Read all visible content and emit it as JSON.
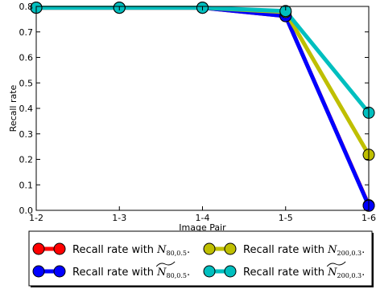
{
  "chart_data": {
    "type": "line",
    "xlabel": "Image Pair",
    "ylabel": "Recall rate",
    "categories": [
      "1-2",
      "1-3",
      "1-4",
      "1-5",
      "1-6"
    ],
    "ylim": [
      0.0,
      0.8
    ],
    "yticks": [
      "0.0",
      "0.1",
      "0.2",
      "0.3",
      "0.4",
      "0.5",
      "0.6",
      "0.7",
      "0.8"
    ],
    "grid": false,
    "legend_placement": "bottom",
    "series": [
      {
        "name": "Recall rate with N_{80,0.5}.",
        "legend_prefix": "Recall rate with",
        "symbol": "N",
        "hat": false,
        "sub": "80,0.5",
        "color": "#ff0000",
        "values": [
          0.795,
          0.795,
          0.795,
          0.762,
          0.02
        ]
      },
      {
        "name": "Recall rate with N̂_{80,0.5}.",
        "legend_prefix": "Recall rate with",
        "symbol": "N",
        "hat": true,
        "sub": "80,0.5",
        "color": "#0000ff",
        "values": [
          0.795,
          0.795,
          0.795,
          0.762,
          0.018
        ]
      },
      {
        "name": "Recall rate with N_{200,0.3}.",
        "legend_prefix": "Recall rate with",
        "symbol": "N",
        "hat": false,
        "sub": "200,0.3",
        "color": "#bfbf00",
        "values": [
          0.795,
          0.795,
          0.795,
          0.778,
          0.218
        ]
      },
      {
        "name": "Recall rate with N̂_{200,0.3}.",
        "legend_prefix": "Recall rate with",
        "symbol": "N",
        "hat": true,
        "sub": "200,0.3",
        "color": "#00bfbf",
        "values": [
          0.795,
          0.795,
          0.795,
          0.782,
          0.383
        ]
      }
    ]
  }
}
